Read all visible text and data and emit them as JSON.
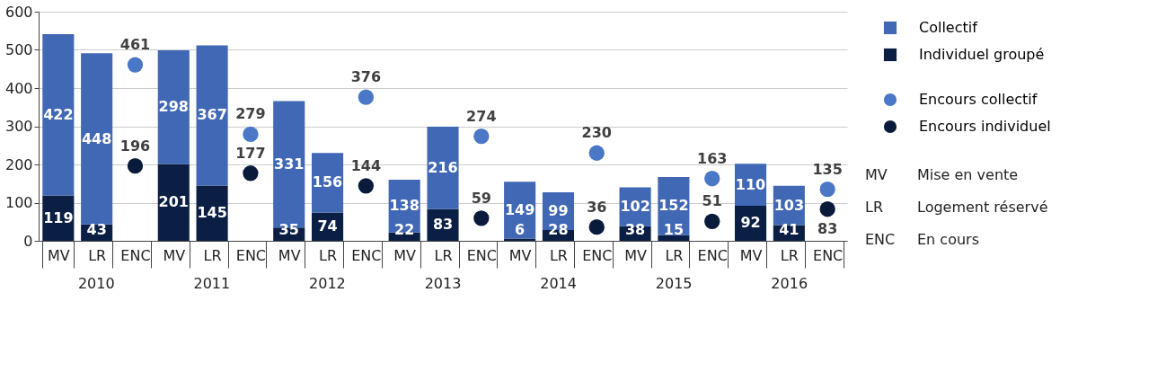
{
  "chart_data": {
    "type": "bar",
    "stacked": true,
    "categories": [
      "MV",
      "LR",
      "ENC",
      "MV",
      "LR",
      "ENC",
      "MV",
      "LR",
      "ENC",
      "MV",
      "LR",
      "ENC",
      "MV",
      "LR",
      "ENC",
      "MV",
      "LR",
      "ENC",
      "MV",
      "LR",
      "ENC"
    ],
    "series": [
      {
        "name": "Individuel groupé",
        "color": "#0b1f45",
        "values": [
          119,
          43,
          null,
          201,
          145,
          null,
          35,
          74,
          null,
          22,
          83,
          null,
          6,
          28,
          null,
          38,
          15,
          null,
          92,
          41,
          null
        ]
      },
      {
        "name": "Collectif",
        "color": "#4168b4",
        "values": [
          422,
          448,
          null,
          298,
          367,
          null,
          331,
          156,
          null,
          138,
          216,
          null,
          149,
          99,
          null,
          102,
          152,
          null,
          110,
          103,
          null
        ]
      },
      {
        "name": "Encours collectif",
        "type": "scatter",
        "color": "#4a78c6",
        "values": [
          null,
          null,
          461,
          null,
          null,
          279,
          null,
          null,
          376,
          null,
          null,
          274,
          null,
          null,
          230,
          null,
          null,
          163,
          null,
          null,
          135
        ]
      },
      {
        "name": "Encours individuel",
        "type": "scatter",
        "color": "#0a1a3a",
        "values": [
          null,
          null,
          196,
          null,
          null,
          177,
          null,
          null,
          144,
          null,
          null,
          59,
          null,
          null,
          36,
          null,
          null,
          51,
          null,
          null,
          83
        ]
      }
    ],
    "annotations": [
      "2010",
      "2011",
      "2012",
      "2013",
      "2014",
      "2015",
      "2016",
      "MV",
      "Mise en vente",
      "LR",
      "Logement réservé",
      "ENC",
      "En cours"
    ],
    "ylim": [
      0,
      600
    ],
    "yticks": [
      0,
      100,
      200,
      300,
      400,
      500,
      600
    ],
    "grid": "y",
    "legend": "right",
    "marker": "circle",
    "data_labels": true
  }
}
